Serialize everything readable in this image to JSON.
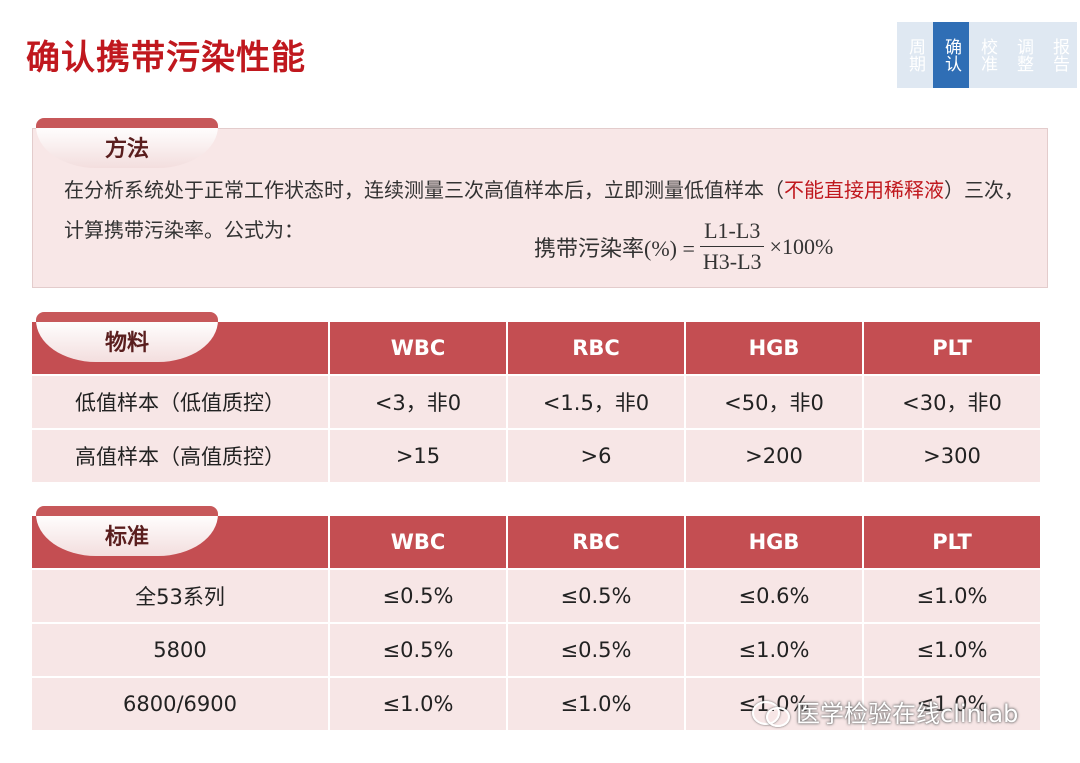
{
  "title": "确认携带污染性能",
  "nav": [
    {
      "label": "周期",
      "active": false
    },
    {
      "label": "确认",
      "active": true
    },
    {
      "label": "校准",
      "active": false
    },
    {
      "label": "调整",
      "active": false
    },
    {
      "label": "报告",
      "active": false
    }
  ],
  "method": {
    "tab": "方法",
    "text_part1": "在分析系统处于正常工作状态时，连续测量三次高值样本后，立即测量低值样本（",
    "text_warn": "不能直接用稀释液",
    "text_part2": "）三次，计算携带污染率。公式为：",
    "formula_lhs": "携带污染率(%) =",
    "formula_num": "L1-L3",
    "formula_den": "H3-L3",
    "formula_rhs": "×100%"
  },
  "materials": {
    "tab": "物料",
    "columns": [
      "WBC",
      "RBC",
      "HGB",
      "PLT"
    ],
    "rows": [
      {
        "label": "低值样本（低值质控）",
        "values": [
          "<3，非0",
          "<1.5，非0",
          "<50，非0",
          "<30，非0"
        ]
      },
      {
        "label": "高值样本（高值质控）",
        "values": [
          ">15",
          ">6",
          ">200",
          ">300"
        ]
      }
    ]
  },
  "standards": {
    "tab": "标准",
    "columns": [
      "WBC",
      "RBC",
      "HGB",
      "PLT"
    ],
    "rows": [
      {
        "label": "全53系列",
        "values": [
          "≤0.5%",
          "≤0.5%",
          "≤0.6%",
          "≤1.0%"
        ]
      },
      {
        "label": "5800",
        "values": [
          "≤0.5%",
          "≤0.5%",
          "≤1.0%",
          "≤1.0%"
        ]
      },
      {
        "label": "6800/6900",
        "values": [
          "≤1.0%",
          "≤1.0%",
          "≤1.0%",
          "≤1.0%"
        ]
      }
    ]
  },
  "watermark": "医学检验在线clinlab"
}
